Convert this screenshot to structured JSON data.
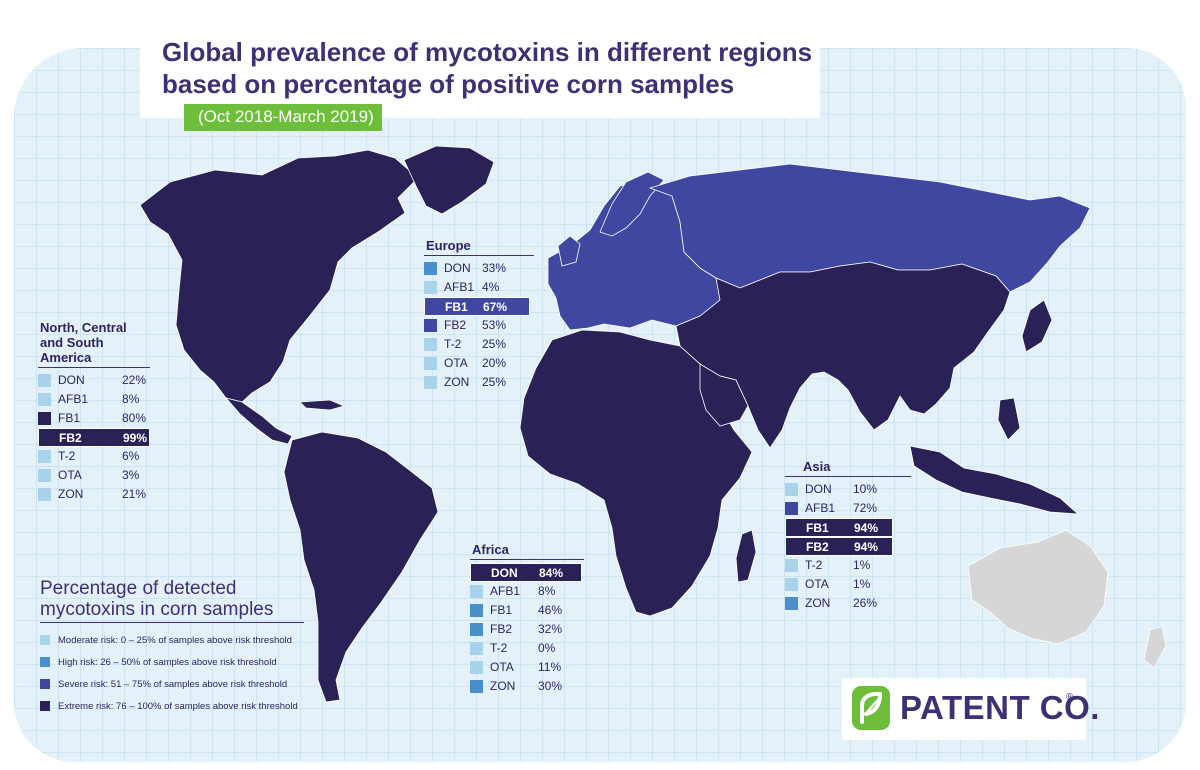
{
  "title_lines": [
    "Global prevalence of mycotoxins in different regions",
    "based on percentage of positive corn samples"
  ],
  "subtitle": "(Oct 2018-March 2019)",
  "colors": {
    "moderate": "#a9d3ea",
    "high": "#4a8fca",
    "severe": "#3f47a0",
    "extreme": "#2a2257",
    "australia": "#d6d6d6",
    "title": "#3f2f73",
    "brand_green": "#6dbf3b",
    "ocean": "#e4f1f9"
  },
  "region_risk": {
    "americas": "extreme",
    "europe": "severe",
    "africa": "extreme",
    "asia": "extreme",
    "australia": "no data"
  },
  "regions": [
    {
      "key": "americas",
      "name_lines": [
        "North, Central",
        "and South America"
      ],
      "rows": [
        {
          "label": "DON",
          "value": "22%",
          "risk": "moderate"
        },
        {
          "label": "AFB1",
          "value": "8%",
          "risk": "moderate"
        },
        {
          "label": "FB1",
          "value": "80%",
          "risk": "extreme"
        },
        {
          "label": "FB2",
          "value": "99%",
          "risk": "extreme",
          "highlight": true
        },
        {
          "label": "T-2",
          "value": "6%",
          "risk": "moderate"
        },
        {
          "label": "OTA",
          "value": "3%",
          "risk": "moderate"
        },
        {
          "label": "ZON",
          "value": "21%",
          "risk": "moderate"
        }
      ]
    },
    {
      "key": "europe",
      "name_lines": [
        "Europe"
      ],
      "rows": [
        {
          "label": "DON",
          "value": "33%",
          "risk": "high"
        },
        {
          "label": "AFB1",
          "value": "4%",
          "risk": "moderate"
        },
        {
          "label": "FB1",
          "value": "67%",
          "risk": "severe",
          "highlight": true
        },
        {
          "label": "FB2",
          "value": "53%",
          "risk": "severe"
        },
        {
          "label": "T-2",
          "value": "25%",
          "risk": "moderate"
        },
        {
          "label": "OTA",
          "value": "20%",
          "risk": "moderate"
        },
        {
          "label": "ZON",
          "value": "25%",
          "risk": "moderate"
        }
      ]
    },
    {
      "key": "africa",
      "name_lines": [
        "Africa"
      ],
      "rows": [
        {
          "label": "DON",
          "value": "84%",
          "risk": "extreme",
          "highlight": true
        },
        {
          "label": "AFB1",
          "value": "8%",
          "risk": "moderate"
        },
        {
          "label": "FB1",
          "value": "46%",
          "risk": "high"
        },
        {
          "label": "FB2",
          "value": "32%",
          "risk": "high"
        },
        {
          "label": "T-2",
          "value": "0%",
          "risk": "moderate"
        },
        {
          "label": "OTA",
          "value": "11%",
          "risk": "moderate"
        },
        {
          "label": "ZON",
          "value": "30%",
          "risk": "high"
        }
      ]
    },
    {
      "key": "asia",
      "name_lines": [
        "Asia"
      ],
      "rows": [
        {
          "label": "DON",
          "value": "10%",
          "risk": "moderate"
        },
        {
          "label": "AFB1",
          "value": "72%",
          "risk": "severe"
        },
        {
          "label": "FB1",
          "value": "94%",
          "risk": "extreme",
          "highlight": true
        },
        {
          "label": "FB2",
          "value": "94%",
          "risk": "extreme",
          "highlight": true
        },
        {
          "label": "T-2",
          "value": "1%",
          "risk": "moderate"
        },
        {
          "label": "OTA",
          "value": "1%",
          "risk": "moderate"
        },
        {
          "label": "ZON",
          "value": "26%",
          "risk": "high"
        }
      ]
    }
  ],
  "legend": {
    "title_lines": [
      "Percentage of detected",
      "mycotoxins in corn samples"
    ],
    "items": [
      {
        "label": "Moderate risk: 0 – 25% of samples above risk threshold",
        "risk": "moderate"
      },
      {
        "label": "High risk: 26 – 50% of samples above risk threshold",
        "risk": "high"
      },
      {
        "label": "Severe risk: 51 – 75% of samples above risk threshold",
        "risk": "severe"
      },
      {
        "label": "Extreme risk: 76 – 100% of samples above risk threshold",
        "risk": "extreme"
      }
    ]
  },
  "brand": {
    "name": "PATENT CO.",
    "reg": "®",
    "logo_icon": "leaf-logo-icon"
  }
}
